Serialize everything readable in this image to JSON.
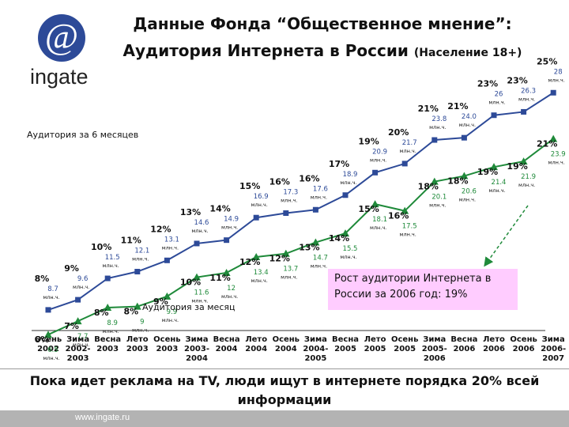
{
  "logo": {
    "symbol": "@",
    "name": "ingate",
    "color": "#2d4a98"
  },
  "title": {
    "line1": "Данные Фонда “Общественное мнение”:",
    "line2": "Аудитория Интернета в России",
    "line2_sub": "(Население 18+)"
  },
  "callout": {
    "text": "Рост аудитории Интернета в России за 2006 год: 19%",
    "bg_color": "#ffccff"
  },
  "footer": {
    "text": "Пока идет реклама на TV, люди ищут в интернете порядка 20% всей информации",
    "url": "www.ingate.ru"
  },
  "chart_data": {
    "type": "line",
    "unit": "млн.ч.",
    "categories": [
      [
        "Осень",
        "2002"
      ],
      [
        "Зима",
        "2002-",
        "2003"
      ],
      [
        "Весна",
        "2003"
      ],
      [
        "Лето",
        "2003"
      ],
      [
        "Осень",
        "2003"
      ],
      [
        "Зима",
        "2003-",
        "2004"
      ],
      [
        "Весна",
        "2004"
      ],
      [
        "Лето",
        "2004"
      ],
      [
        "Осень",
        "2004"
      ],
      [
        "Зима",
        "2004-",
        "2005"
      ],
      [
        "Весна",
        "2005"
      ],
      [
        "Лето",
        "2005"
      ],
      [
        "Осень",
        "2005"
      ],
      [
        "Зима",
        "2005-",
        "2006"
      ],
      [
        "Весна",
        "2006"
      ],
      [
        "Лето",
        "2006"
      ],
      [
        "Осень",
        "2006"
      ],
      [
        "Зима",
        "2006-",
        "2007"
      ]
    ],
    "series": [
      {
        "name": "Аудитория за 6 месяцев",
        "color": "#2d4a98",
        "marker": "square",
        "values": [
          8.7,
          9.6,
          11.5,
          12.1,
          13.1,
          14.6,
          14.9,
          16.9,
          17.3,
          17.6,
          18.9,
          20.9,
          21.7,
          23.8,
          24.0,
          26.0,
          26.3,
          28.0
        ],
        "value_labels": [
          "8.7",
          "9.6",
          "11.5",
          "12.1",
          "13.1",
          "14.6",
          "14.9",
          "16.9",
          "17.3",
          "17.6",
          "18.9",
          "20.9",
          "21.7",
          "23.8",
          "24.0",
          "26",
          "26.3",
          "28"
        ],
        "percents": [
          "8%",
          "9%",
          "10%",
          "11%",
          "12%",
          "13%",
          "14%",
          "15%",
          "16%",
          "16%",
          "17%",
          "19%",
          "20%",
          "21%",
          "21%",
          "23%",
          "23%",
          "25%"
        ]
      },
      {
        "name": "Аудитория за месяц",
        "color": "#1f8a3a",
        "marker": "triangle",
        "values": [
          6.5,
          7.7,
          8.9,
          9.0,
          9.9,
          11.6,
          12.0,
          13.4,
          13.7,
          14.7,
          15.5,
          18.1,
          17.5,
          20.1,
          20.6,
          21.4,
          21.9,
          23.9
        ],
        "value_labels": [
          "6.5",
          "7.7",
          "8.9",
          "9",
          "9.9",
          "11.6",
          "12",
          "13.4",
          "13.7",
          "14.7",
          "15.5",
          "18.1",
          "17.5",
          "20.1",
          "20.6",
          "21.4",
          "21.9",
          "23.9"
        ],
        "percents": [
          "6%",
          "7%",
          "8%",
          "8%",
          "9%",
          "10%",
          "11%",
          "12%",
          "12%",
          "13%",
          "14%",
          "15%",
          "16%",
          "18%",
          "18%",
          "19%",
          "19%",
          "21%"
        ]
      }
    ]
  }
}
